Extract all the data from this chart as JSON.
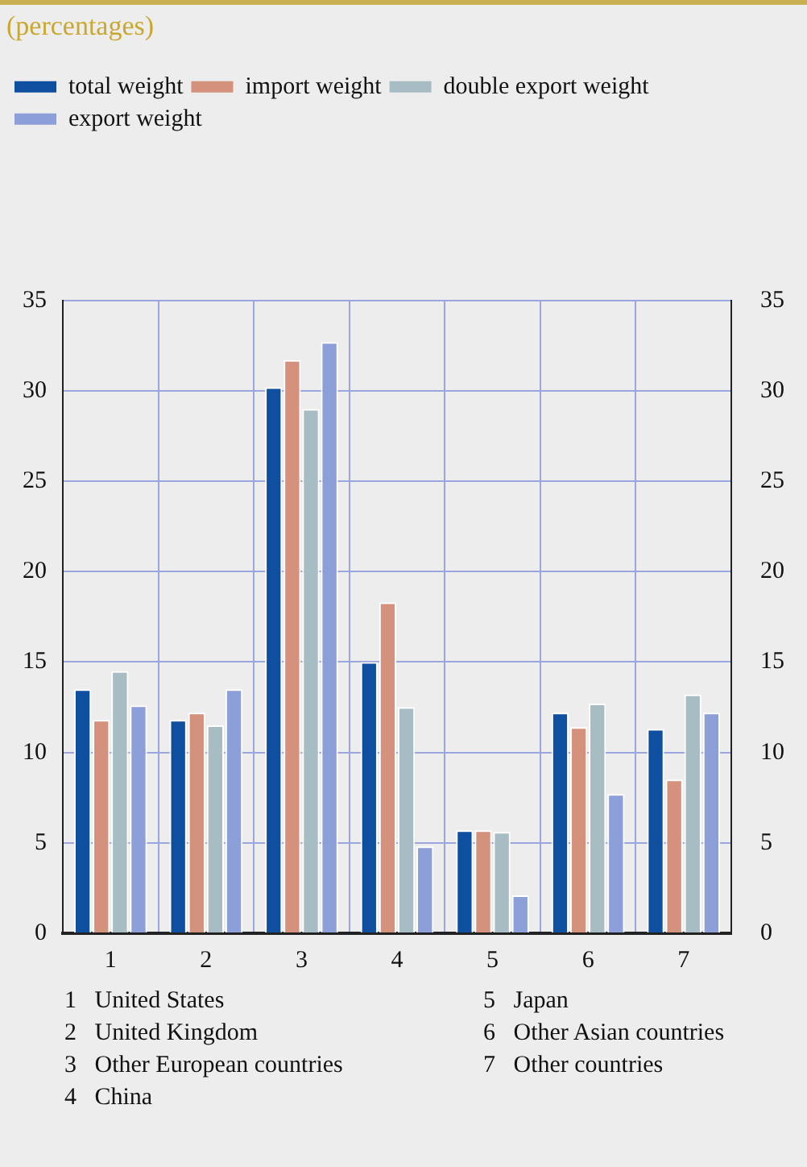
{
  "chart_data": {
    "type": "bar",
    "title": "(percentages)",
    "categories": [
      "1",
      "2",
      "3",
      "4",
      "5",
      "6",
      "7"
    ],
    "series": [
      {
        "name": "total weight",
        "color": "#0f4fa0",
        "values": [
          13.5,
          11.8,
          30.2,
          15.0,
          5.7,
          12.2,
          11.3
        ]
      },
      {
        "name": "import weight",
        "color": "#d4917c",
        "values": [
          11.8,
          12.2,
          31.7,
          18.3,
          5.7,
          11.4,
          8.5
        ]
      },
      {
        "name": "double export weight",
        "color": "#a8bcc4",
        "values": [
          14.5,
          11.5,
          29.0,
          12.5,
          5.6,
          12.7,
          13.2
        ]
      },
      {
        "name": "export weight",
        "color": "#8c9fd8",
        "values": [
          12.6,
          13.5,
          32.7,
          4.8,
          2.1,
          7.7,
          12.2
        ]
      }
    ],
    "ylim": [
      0,
      35
    ],
    "yticks": [
      0,
      5,
      10,
      15,
      20,
      25,
      30,
      35
    ],
    "y2lim": [
      0,
      35
    ],
    "y2ticks": [
      0,
      5,
      10,
      15,
      20,
      25,
      30,
      35
    ],
    "grid": true,
    "legend": "top left",
    "annotations": [
      "1   United States",
      "2   United Kingdom",
      "3   Other European countries",
      "4   China",
      "5   Japan",
      "6   Other Asian countries",
      "7   Other countries"
    ]
  }
}
